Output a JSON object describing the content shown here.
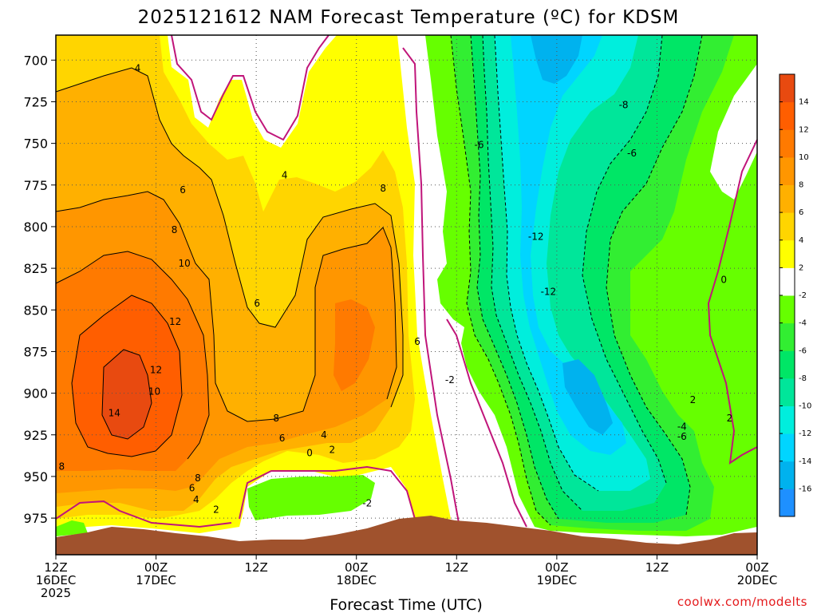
{
  "title": "2025121612 NAM Forecast Temperature (ºC) for KDSM",
  "credit": "coolwx.com/modelts",
  "chart_data": {
    "type": "contour",
    "title": "2025121612 NAM Forecast Temperature (ºC) for KDSM",
    "xlabel": "Forecast Time (UTC)",
    "ylabel": "",
    "x_ticks": [
      {
        "hour": 0,
        "line1": "12Z",
        "line2": "16DEC",
        "line3": "2025"
      },
      {
        "hour": 12,
        "line1": "00Z",
        "line2": "17DEC",
        "line3": ""
      },
      {
        "hour": 24,
        "line1": "12Z",
        "line2": "",
        "line3": ""
      },
      {
        "hour": 36,
        "line1": "00Z",
        "line2": "18DEC",
        "line3": ""
      },
      {
        "hour": 48,
        "line1": "12Z",
        "line2": "",
        "line3": ""
      },
      {
        "hour": 60,
        "line1": "00Z",
        "line2": "19DEC",
        "line3": ""
      },
      {
        "hour": 72,
        "line1": "12Z",
        "line2": "",
        "line3": ""
      },
      {
        "hour": 84,
        "line1": "00Z",
        "line2": "20DEC",
        "line3": ""
      }
    ],
    "xlim_hours": [
      0,
      84
    ],
    "y_ticks_hpa": [
      700,
      725,
      750,
      775,
      800,
      825,
      850,
      875,
      900,
      925,
      950,
      975
    ],
    "ylim_hpa": [
      685,
      997
    ],
    "grid": true,
    "colorbar": {
      "levels": [
        -16,
        -14,
        -12,
        -10,
        -8,
        -6,
        -4,
        -2,
        2,
        4,
        6,
        8,
        10,
        12,
        14
      ],
      "colors": [
        "#1e90ff",
        "#00b2ee",
        "#00d5ff",
        "#00eedd",
        "#00e69a",
        "#00e666",
        "#32ee32",
        "#66ff00",
        "#ffffff",
        "#ffff00",
        "#ffd500",
        "#ffb000",
        "#ff9600",
        "#ff7a00",
        "#ff5e00",
        "#e84a10"
      ]
    },
    "contour_labels": [
      {
        "text": "4",
        "hour": 9.8,
        "hpa": 705
      },
      {
        "text": "6",
        "hour": 15.2,
        "hpa": 778
      },
      {
        "text": "8",
        "hour": 14.2,
        "hpa": 802
      },
      {
        "text": "10",
        "hour": 15.4,
        "hpa": 822
      },
      {
        "text": "12",
        "hour": 14.3,
        "hpa": 857
      },
      {
        "text": "12",
        "hour": 12.0,
        "hpa": 886
      },
      {
        "text": "10",
        "hour": 11.8,
        "hpa": 899
      },
      {
        "text": "14",
        "hour": 7.0,
        "hpa": 912
      },
      {
        "text": "8",
        "hour": 0.7,
        "hpa": 944
      },
      {
        "text": "8",
        "hour": 17.0,
        "hpa": 951
      },
      {
        "text": "6",
        "hour": 16.3,
        "hpa": 957
      },
      {
        "text": "4",
        "hour": 16.8,
        "hpa": 964
      },
      {
        "text": "2",
        "hour": 19.2,
        "hpa": 970
      },
      {
        "text": "4",
        "hour": 27.4,
        "hpa": 769
      },
      {
        "text": "6",
        "hour": 24.1,
        "hpa": 846
      },
      {
        "text": "8",
        "hour": 26.4,
        "hpa": 915
      },
      {
        "text": "6",
        "hour": 27.1,
        "hpa": 927
      },
      {
        "text": "0",
        "hour": 30.4,
        "hpa": 936
      },
      {
        "text": "4",
        "hour": 32.1,
        "hpa": 925
      },
      {
        "text": "2",
        "hour": 33.1,
        "hpa": 934
      },
      {
        "text": "8",
        "hour": 39.2,
        "hpa": 777
      },
      {
        "text": "6",
        "hour": 43.3,
        "hpa": 869
      },
      {
        "text": "-2",
        "hour": 37.3,
        "hpa": 966
      },
      {
        "text": "-2",
        "hour": 47.2,
        "hpa": 892
      },
      {
        "text": "-6",
        "hour": 50.7,
        "hpa": 751
      },
      {
        "text": "-12",
        "hour": 57.5,
        "hpa": 806
      },
      {
        "text": "-12",
        "hour": 59.0,
        "hpa": 839
      },
      {
        "text": "-8",
        "hour": 68.0,
        "hpa": 727
      },
      {
        "text": "-6",
        "hour": 69.0,
        "hpa": 756
      },
      {
        "text": "0",
        "hour": 80.0,
        "hpa": 832
      },
      {
        "text": "2",
        "hour": 76.3,
        "hpa": 904
      },
      {
        "text": "-4",
        "hour": 75.0,
        "hpa": 920
      },
      {
        "text": "-6",
        "hour": 75.0,
        "hpa": 926
      },
      {
        "text": "2",
        "hour": 80.7,
        "hpa": 915
      }
    ]
  }
}
